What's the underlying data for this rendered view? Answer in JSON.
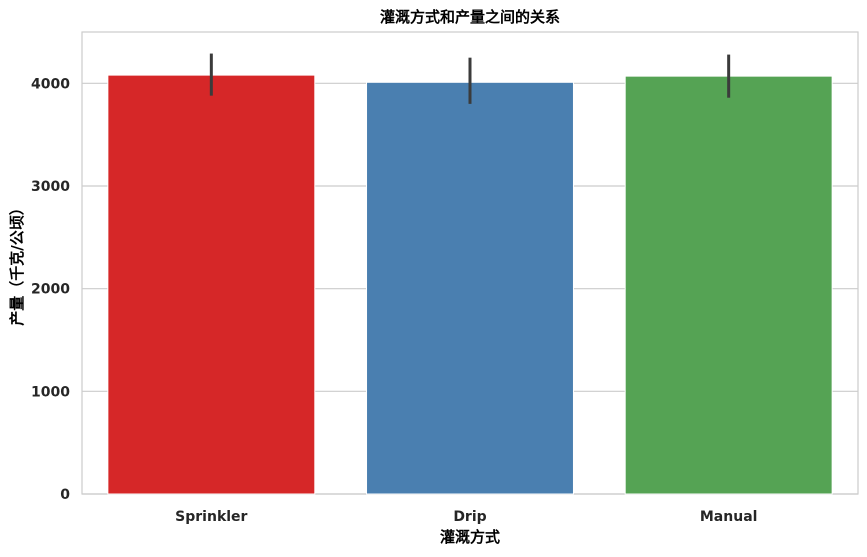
{
  "chart_data": {
    "type": "bar",
    "title": "灌溉方式和产量之间的关系",
    "xlabel": "灌溉方式",
    "ylabel": "产量（千克/公顷）",
    "categories": [
      "Sprinkler",
      "Drip",
      "Manual"
    ],
    "values": [
      4080,
      4010,
      4070
    ],
    "error_low": [
      3880,
      3800,
      3860
    ],
    "error_high": [
      4290,
      4250,
      4280
    ],
    "colors": [
      "#d62728",
      "#4a7fb0",
      "#55a354"
    ],
    "ylim": [
      0,
      4500
    ],
    "yticks": [
      0,
      1000,
      2000,
      3000,
      4000
    ],
    "ytick_labels": [
      "0",
      "1000",
      "2000",
      "3000",
      "4000"
    ],
    "grid": true,
    "legend": "none"
  }
}
